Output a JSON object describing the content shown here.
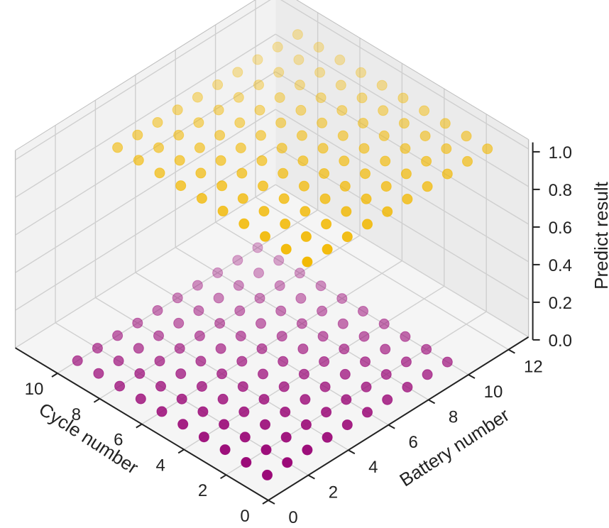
{
  "chart_data": {
    "type": "scatter3d",
    "xlabel": "Cycle number",
    "ylabel": "Battery number",
    "zlabel": "Predict result",
    "x_ticks": [
      "0",
      "2",
      "4",
      "6",
      "8",
      "10"
    ],
    "y_ticks": [
      "0",
      "2",
      "4",
      "6",
      "8",
      "10",
      "12"
    ],
    "z_ticks": [
      "0.0",
      "0.2",
      "0.4",
      "0.6",
      "0.8",
      "1.0"
    ],
    "xlim": [
      0,
      12
    ],
    "ylim": [
      0,
      13
    ],
    "zlim": [
      0,
      1.05
    ],
    "grid": true,
    "series": [
      {
        "color": "#9b0a78",
        "z": 0,
        "cycle_range": [
          1,
          10
        ],
        "battery_range": [
          1,
          10
        ],
        "points_note": "grid of points at z=0"
      },
      {
        "color": "#f2b800",
        "z": 1,
        "cycle_range": [
          1,
          10
        ],
        "battery_range": [
          3,
          12
        ],
        "points_note": "grid of points at z=1"
      }
    ]
  }
}
